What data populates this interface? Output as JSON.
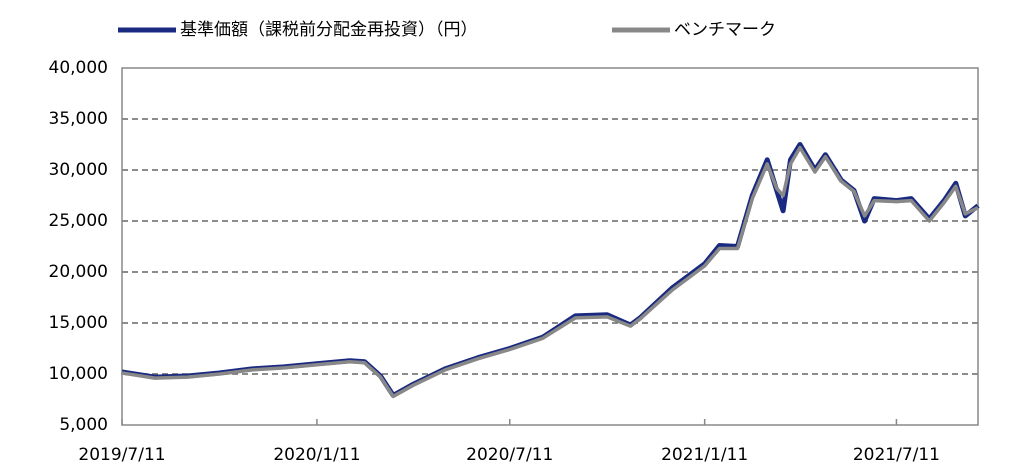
{
  "chart_data": {
    "type": "line",
    "x": [
      "2019/7/11",
      "2019/8/11",
      "2019/9/11",
      "2019/10/11",
      "2019/11/11",
      "2019/12/11",
      "2020/1/11",
      "2020/2/11",
      "2020/2/25",
      "2020/3/11",
      "2020/3/23",
      "2020/4/11",
      "2020/5/11",
      "2020/6/11",
      "2020/7/11",
      "2020/8/11",
      "2020/9/11",
      "2020/10/11",
      "2020/11/2",
      "2020/11/11",
      "2020/12/11",
      "2021/1/11",
      "2021/1/25",
      "2021/2/11",
      "2021/2/25",
      "2021/3/11",
      "2021/3/20",
      "2021/3/26",
      "2021/4/2",
      "2021/4/11",
      "2021/4/25",
      "2021/5/5",
      "2021/5/20",
      "2021/6/1",
      "2021/6/11",
      "2021/6/20",
      "2021/7/11",
      "2021/7/25",
      "2021/8/11",
      "2021/8/25",
      "2021/9/5",
      "2021/9/14",
      "2021/9/26"
    ],
    "series": [
      {
        "name": "基準価額（課税前分配金再投資）（円）",
        "color": "#1a2a80",
        "values": [
          10200,
          9700,
          9800,
          10100,
          10500,
          10700,
          11000,
          11300,
          11200,
          9800,
          7900,
          9000,
          10500,
          11600,
          12500,
          13600,
          15700,
          15800,
          14800,
          15500,
          18400,
          20800,
          22600,
          22500,
          27500,
          31000,
          28000,
          26000,
          31000,
          32500,
          30000,
          31500,
          29000,
          28000,
          25000,
          27200,
          27000,
          27200,
          25200,
          27000,
          28700,
          25500,
          26500
        ]
      },
      {
        "name": "ベンチマーク",
        "color": "#888888",
        "values": [
          10100,
          9600,
          9700,
          10000,
          10400,
          10600,
          10900,
          11200,
          11100,
          9700,
          7800,
          8900,
          10400,
          11500,
          12400,
          13500,
          15500,
          15600,
          14700,
          15400,
          18200,
          20600,
          22300,
          22300,
          27200,
          30600,
          28200,
          27500,
          30600,
          32200,
          29800,
          31300,
          28900,
          27900,
          25500,
          27000,
          26900,
          27000,
          25000,
          26800,
          28400,
          25700,
          26300
        ]
      }
    ],
    "xlim": [
      "2019/7/11",
      "2021/9/26"
    ],
    "xticks": [
      "2019/7/11",
      "2020/1/11",
      "2020/7/11",
      "2021/1/11",
      "2021/7/11"
    ],
    "ylim": [
      5000,
      40000
    ],
    "yticks": [
      {
        "value": 5000,
        "label": "5,000"
      },
      {
        "value": 10000,
        "label": "10,000"
      },
      {
        "value": 15000,
        "label": "15,000"
      },
      {
        "value": 20000,
        "label": "20,000"
      },
      {
        "value": 25000,
        "label": "25,000"
      },
      {
        "value": 30000,
        "label": "30,000"
      },
      {
        "value": 35000,
        "label": "35,000"
      },
      {
        "value": 40000,
        "label": "40,000"
      }
    ],
    "grid": true
  }
}
